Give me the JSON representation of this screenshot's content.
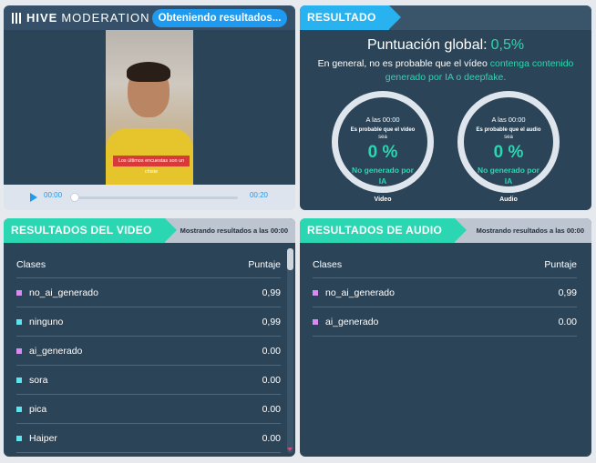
{
  "video_panel": {
    "logo": {
      "bold": "HIVE",
      "rest": "MODERATION"
    },
    "status_pill": "Obteniendo resultados...",
    "caption": "Los últimos encuestas son un chiste",
    "time_start": "00:00",
    "time_end": "00:20"
  },
  "result_panel": {
    "header": "RESULTADO",
    "score_label": "Puntuación global:",
    "score_value": "0,5%",
    "summary_plain": "En general, no es probable que el vídeo ",
    "summary_highlight": "contenga contenido generado por IA o deepfake.",
    "gauges": [
      {
        "time": "A las 00:00",
        "line1": "Es probable que el video",
        "line2": "sea",
        "percent": "0 %",
        "result": "No generado por IA",
        "label": "Video"
      },
      {
        "time": "A las 00:00",
        "line1": "Es probable que el audio",
        "line2": "sea",
        "percent": "0 %",
        "result": "No generado por IA",
        "label": "Audio"
      }
    ]
  },
  "video_results": {
    "header": "RESULTADOS DEL VIDEO",
    "showing": "Mostrando resultados a las 00:00",
    "col_class": "Clases",
    "col_score": "Puntaje",
    "rows": [
      {
        "name": "no_ai_generado",
        "score": "0,99",
        "color": "#d58ef0"
      },
      {
        "name": "ninguno",
        "score": "0,99",
        "color": "#5fe3e6"
      },
      {
        "name": "ai_generado",
        "score": "0.00",
        "color": "#d58ef0"
      },
      {
        "name": "sora",
        "score": "0.00",
        "color": "#5fe3e6"
      },
      {
        "name": "pica",
        "score": "0.00",
        "color": "#5fe3e6"
      },
      {
        "name": "Haiper",
        "score": "0.00",
        "color": "#5fe3e6"
      }
    ]
  },
  "audio_results": {
    "header": "RESULTADOS DE AUDIO",
    "showing": "Mostrando resultados a las 00:00",
    "col_class": "Clases",
    "col_score": "Puntaje",
    "rows": [
      {
        "name": "no_ai_generado",
        "score": "0,99",
        "color": "#d58ef0"
      },
      {
        "name": "ai_generado",
        "score": "0.00",
        "color": "#d58ef0"
      }
    ]
  },
  "colors": {
    "accent_teal": "#2ad7b2",
    "accent_blue": "#28b3f0",
    "panel_bg": "#2c4457"
  }
}
